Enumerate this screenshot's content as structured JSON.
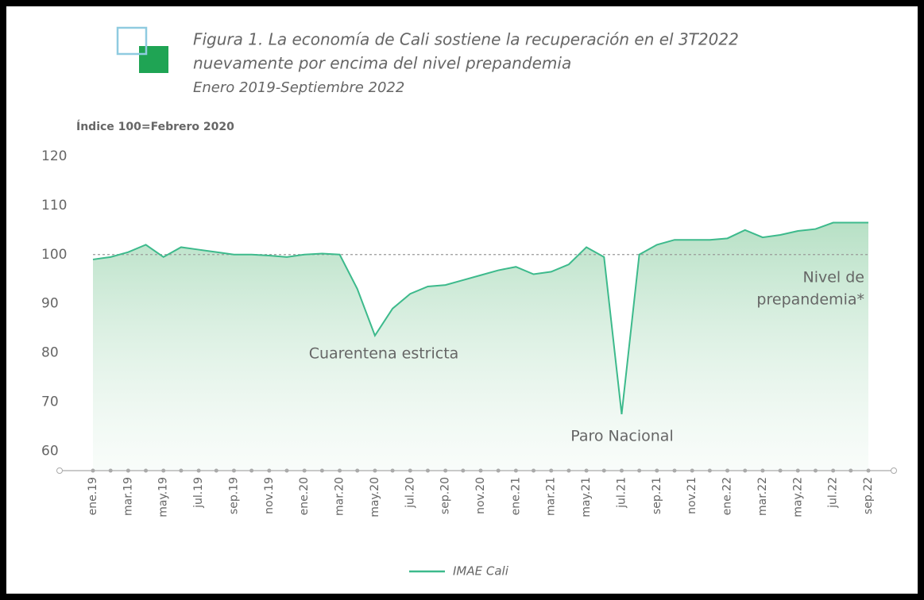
{
  "chart_data": {
    "type": "line",
    "title": [
      "Figura 1. La economía de Cali sostiene la recuperación en el 3T2022",
      "nuevamente por encima del nivel prepandemia"
    ],
    "subtitle": "Enero 2019-Septiembre 2022",
    "y_label": "Índice 100=Febrero 2020",
    "categories": [
      "ene.19",
      null,
      "mar.19",
      null,
      "may.19",
      null,
      "jul.19",
      null,
      "sep.19",
      null,
      "nov.19",
      null,
      "ene.20",
      null,
      "mar.20",
      null,
      "may.20",
      null,
      "jul.20",
      null,
      "sep.20",
      null,
      "nov.20",
      null,
      "ene.21",
      null,
      "mar.21",
      null,
      "may.21",
      null,
      "jul.21",
      null,
      "sep.21",
      null,
      "nov.21",
      null,
      "ene.22",
      null,
      "mar.22",
      null,
      "may.22",
      null,
      "jul.22",
      null,
      "sep.22"
    ],
    "series": [
      {
        "name": "IMAE Cali",
        "color": "#3dba8c",
        "values": [
          99,
          99.5,
          100.5,
          102,
          99.5,
          101.5,
          101,
          100.5,
          100,
          100,
          99.8,
          99.5,
          100,
          100.2,
          100,
          93,
          83.5,
          89,
          92,
          93.5,
          93.8,
          94.8,
          95.8,
          96.8,
          97.5,
          96,
          96.5,
          98,
          101.5,
          99.5,
          67.5,
          100,
          102,
          103,
          103,
          103,
          103.3,
          105,
          103.5,
          104,
          104.8,
          105.2,
          106.5,
          106.5,
          106.5
        ]
      }
    ],
    "reference_line": 100,
    "annotations": [
      {
        "text": [
          "Cuarentena estricta"
        ]
      },
      {
        "text": [
          "Paro Nacional"
        ]
      },
      {
        "text": [
          "Nivel de",
          "prepandemia*"
        ]
      }
    ],
    "ylim": [
      56,
      120
    ],
    "yticks": [
      60,
      70,
      80,
      90,
      100,
      110,
      120
    ],
    "grid": false
  }
}
